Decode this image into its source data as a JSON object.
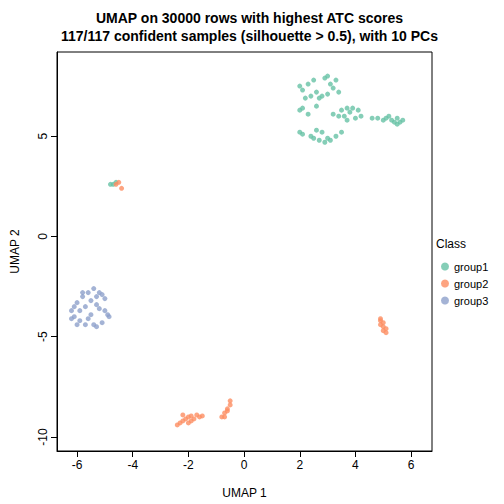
{
  "chart_data": {
    "type": "scatter",
    "title": "UMAP on 30000 rows with highest ATC scores\n117/117 confident samples (silhouette > 0.5), with 10 PCs",
    "x_label": "UMAP 1",
    "y_label": "UMAP 2",
    "legend_title": "Class",
    "legend": "right",
    "xlim": [
      -6.72,
      6.75
    ],
    "ylim": [
      -10.7,
      9.2
    ],
    "xticks": [
      -6,
      -4,
      -2,
      0,
      2,
      4,
      6
    ],
    "yticks": [
      -10,
      -5,
      0,
      5
    ],
    "grid": false,
    "marker": "circle",
    "series": [
      {
        "name": "group1",
        "color": "#66C2A5",
        "values": [
          [
            2.0,
            7.5
          ],
          [
            2.1,
            7.3
          ],
          [
            2.3,
            7.6
          ],
          [
            2.5,
            7.8
          ],
          [
            2.6,
            7.2
          ],
          [
            2.8,
            7.0
          ],
          [
            2.9,
            7.9
          ],
          [
            3.0,
            8.0
          ],
          [
            3.1,
            7.6
          ],
          [
            3.2,
            7.4
          ],
          [
            3.3,
            7.8
          ],
          [
            2.4,
            7.0
          ],
          [
            2.7,
            6.9
          ],
          [
            3.4,
            7.2
          ],
          [
            2.2,
            6.9
          ],
          [
            3.0,
            7.1
          ],
          [
            2.0,
            6.3
          ],
          [
            2.1,
            6.4
          ],
          [
            2.3,
            6.1
          ],
          [
            2.6,
            6.5
          ],
          [
            3.2,
            6.1
          ],
          [
            3.4,
            6.0
          ],
          [
            3.5,
            6.3
          ],
          [
            3.6,
            6.0
          ],
          [
            3.7,
            5.8
          ],
          [
            3.8,
            6.2
          ],
          [
            3.9,
            6.4
          ],
          [
            4.0,
            5.9
          ],
          [
            4.1,
            6.3
          ],
          [
            4.2,
            6.0
          ],
          [
            3.7,
            6.4
          ],
          [
            4.6,
            5.9
          ],
          [
            4.8,
            5.9
          ],
          [
            5.0,
            5.8
          ],
          [
            5.2,
            6.0
          ],
          [
            5.3,
            5.8
          ],
          [
            5.4,
            5.7
          ],
          [
            5.5,
            5.9
          ],
          [
            5.6,
            5.7
          ],
          [
            5.7,
            5.8
          ],
          [
            5.1,
            5.9
          ],
          [
            5.5,
            5.6
          ],
          [
            2.0,
            5.2
          ],
          [
            2.1,
            5.1
          ],
          [
            2.4,
            5.0
          ],
          [
            2.5,
            4.9
          ],
          [
            2.7,
            4.8
          ],
          [
            2.9,
            4.7
          ],
          [
            3.0,
            4.9
          ],
          [
            3.1,
            4.8
          ],
          [
            3.3,
            5.0
          ],
          [
            3.5,
            5.2
          ],
          [
            2.6,
            5.3
          ],
          [
            2.8,
            5.2
          ],
          [
            -4.8,
            2.6
          ],
          [
            -4.7,
            2.6
          ],
          [
            -4.6,
            2.7
          ]
        ]
      },
      {
        "name": "group2",
        "color": "#FC8D62",
        "values": [
          [
            -4.5,
            2.7
          ],
          [
            -4.4,
            2.4
          ],
          [
            -4.6,
            2.6
          ],
          [
            4.9,
            -4.2
          ],
          [
            5.0,
            -4.3
          ],
          [
            4.9,
            -4.4
          ],
          [
            5.0,
            -4.5
          ],
          [
            5.1,
            -4.6
          ],
          [
            5.0,
            -4.7
          ],
          [
            5.1,
            -4.8
          ],
          [
            4.9,
            -4.1
          ],
          [
            -2.4,
            -9.4
          ],
          [
            -2.3,
            -9.3
          ],
          [
            -2.2,
            -9.2
          ],
          [
            -2.1,
            -9.1
          ],
          [
            -2.2,
            -8.9
          ],
          [
            -2.0,
            -9.0
          ],
          [
            -1.9,
            -9.2
          ],
          [
            -1.8,
            -9.1
          ],
          [
            -1.7,
            -8.9
          ],
          [
            -1.6,
            -9.0
          ],
          [
            -1.5,
            -8.95
          ],
          [
            -2.0,
            -9.3
          ],
          [
            -1.9,
            -8.95
          ],
          [
            -0.8,
            -9.0
          ],
          [
            -0.7,
            -8.8
          ],
          [
            -0.6,
            -8.6
          ],
          [
            -0.5,
            -8.4
          ],
          [
            -0.5,
            -8.2
          ],
          [
            -0.6,
            -8.7
          ],
          [
            -0.7,
            -9.0
          ]
        ]
      },
      {
        "name": "group3",
        "color": "#8DA0CB",
        "values": [
          [
            -6.2,
            -3.7
          ],
          [
            -6.1,
            -3.5
          ],
          [
            -6.1,
            -4.0
          ],
          [
            -6.0,
            -3.3
          ],
          [
            -5.9,
            -3.7
          ],
          [
            -5.9,
            -4.2
          ],
          [
            -5.8,
            -3.0
          ],
          [
            -5.7,
            -3.5
          ],
          [
            -5.7,
            -4.4
          ],
          [
            -5.6,
            -2.8
          ],
          [
            -5.5,
            -3.2
          ],
          [
            -5.5,
            -3.9
          ],
          [
            -5.4,
            -2.6
          ],
          [
            -5.4,
            -4.4
          ],
          [
            -5.3,
            -3.0
          ],
          [
            -5.3,
            -4.5
          ],
          [
            -5.2,
            -2.8
          ],
          [
            -5.2,
            -3.6
          ],
          [
            -5.1,
            -4.3
          ],
          [
            -5.0,
            -3.1
          ],
          [
            -5.0,
            -3.7
          ],
          [
            -4.9,
            -3.9
          ],
          [
            -4.85,
            -4.0
          ],
          [
            -5.6,
            -4.1
          ],
          [
            -6.0,
            -4.4
          ],
          [
            -5.8,
            -2.8
          ],
          [
            -5.3,
            -3.4
          ],
          [
            -5.1,
            -2.9
          ],
          [
            -6.2,
            -4.1
          ]
        ]
      }
    ]
  }
}
